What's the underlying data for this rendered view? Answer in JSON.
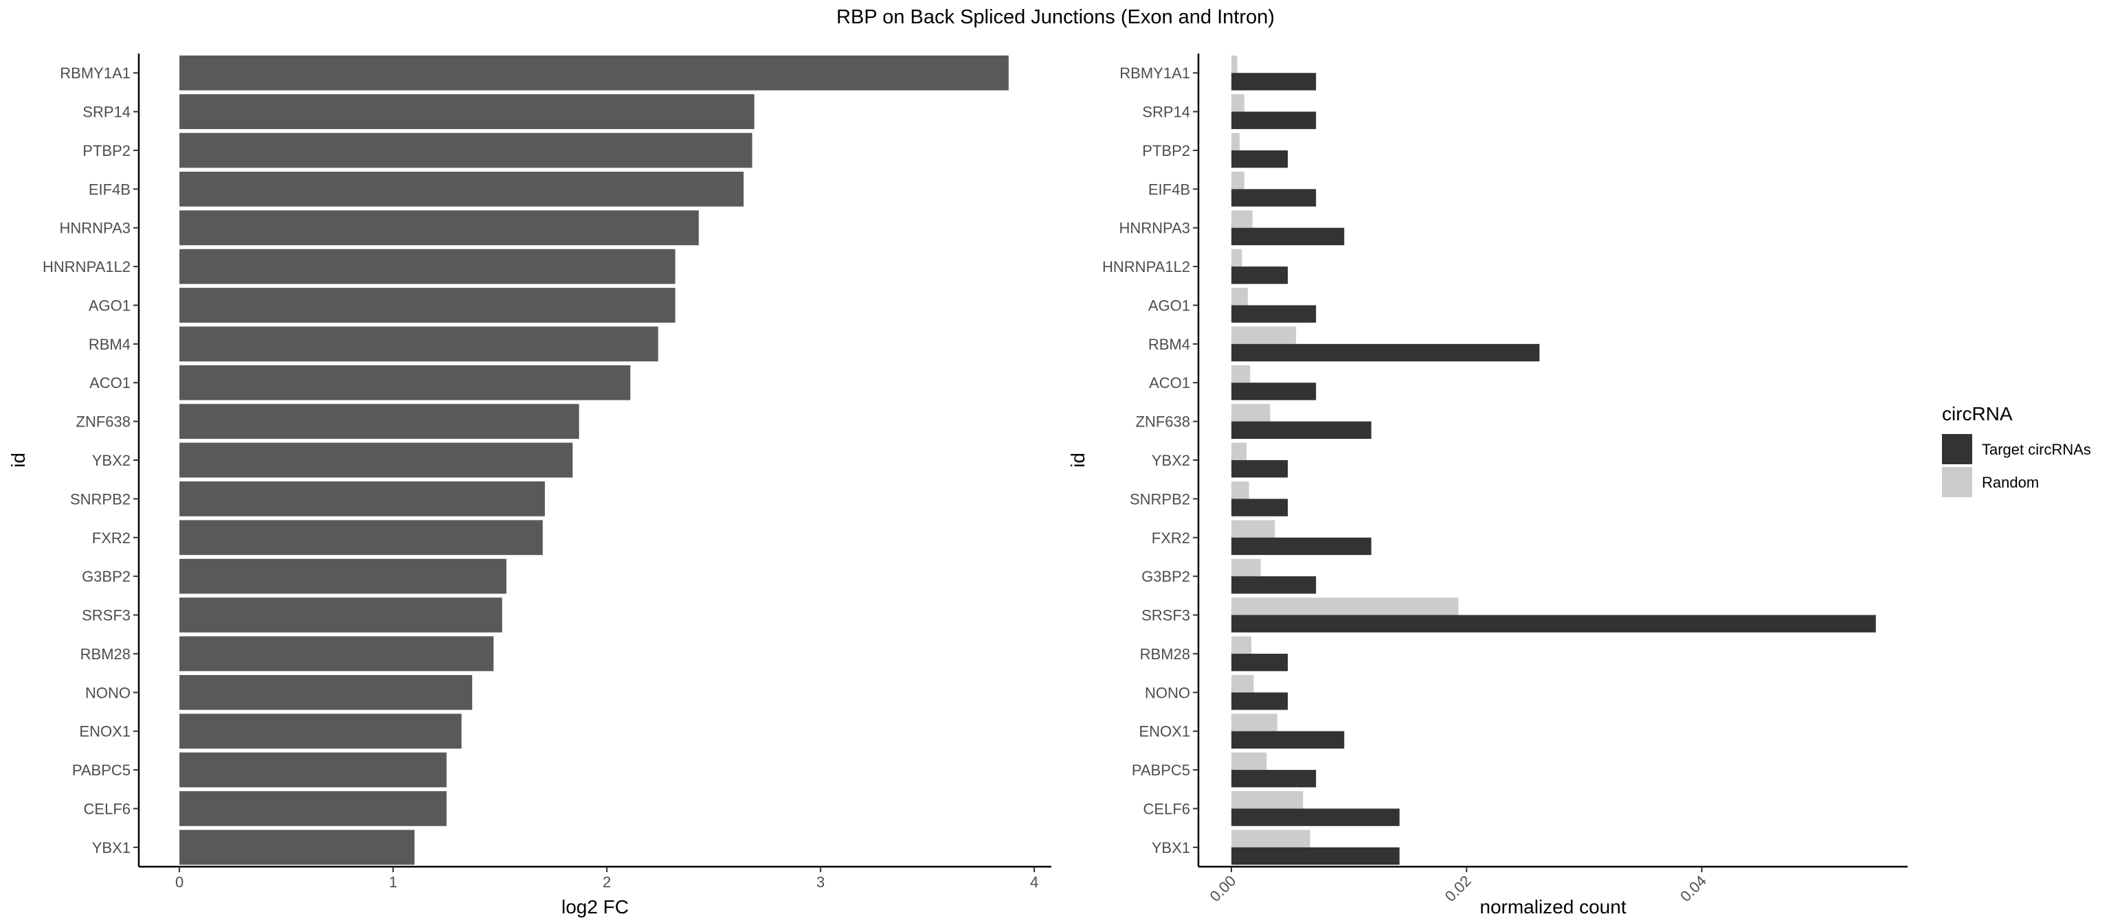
{
  "title": "RBP on Back Spliced Junctions (Exon and Intron)",
  "chart_data": [
    {
      "type": "bar",
      "orientation": "horizontal",
      "categories": [
        "RBMY1A1",
        "SRP14",
        "PTBP2",
        "EIF4B",
        "HNRNPA3",
        "HNRNPA1L2",
        "AGO1",
        "RBM4",
        "ACO1",
        "ZNF638",
        "YBX2",
        "SNRPB2",
        "FXR2",
        "G3BP2",
        "SRSF3",
        "RBM28",
        "NONO",
        "ENOX1",
        "PABPC5",
        "CELF6",
        "YBX1"
      ],
      "values": [
        3.88,
        2.69,
        2.68,
        2.64,
        2.43,
        2.32,
        2.32,
        2.24,
        2.11,
        1.87,
        1.84,
        1.71,
        1.7,
        1.53,
        1.51,
        1.47,
        1.37,
        1.32,
        1.25,
        1.25,
        1.1
      ],
      "xlabel": "log2 FC",
      "ylabel": "id",
      "xlim": [
        -0.19,
        4.08
      ],
      "xticks": [
        0,
        1,
        2,
        3,
        4
      ],
      "tick_labels": [
        "0",
        "1",
        "2",
        "3",
        "4"
      ],
      "bar_color": "#595959",
      "grid": false
    },
    {
      "type": "bar",
      "orientation": "horizontal",
      "position": "dodge",
      "categories": [
        "RBMY1A1",
        "SRP14",
        "PTBP2",
        "EIF4B",
        "HNRNPA3",
        "HNRNPA1L2",
        "AGO1",
        "RBM4",
        "ACO1",
        "ZNF638",
        "YBX2",
        "SNRPB2",
        "FXR2",
        "G3BP2",
        "SRSF3",
        "RBM28",
        "NONO",
        "ENOX1",
        "PABPC5",
        "CELF6",
        "YBX1"
      ],
      "series": [
        {
          "name": "Target circRNAs",
          "color": "#333333",
          "values": [
            0.0072,
            0.0072,
            0.0048,
            0.0072,
            0.0096,
            0.0048,
            0.0072,
            0.0262,
            0.0072,
            0.0119,
            0.0048,
            0.0048,
            0.0119,
            0.0072,
            0.0548,
            0.0048,
            0.0048,
            0.0096,
            0.0072,
            0.0143,
            0.0143
          ]
        },
        {
          "name": "Random",
          "color": "#cccccc",
          "values": [
            0.0005,
            0.0011,
            0.0007,
            0.0011,
            0.0018,
            0.0009,
            0.0014,
            0.0055,
            0.0016,
            0.0033,
            0.0013,
            0.0015,
            0.0037,
            0.0025,
            0.0193,
            0.0017,
            0.0019,
            0.0039,
            0.003,
            0.0061,
            0.0067
          ]
        }
      ],
      "xlabel": "normalized count",
      "ylabel": "id",
      "xlim": [
        -0.0028,
        0.0575
      ],
      "xticks": [
        0.0,
        0.02,
        0.04
      ],
      "tick_labels": [
        "0.00",
        "0.02",
        "0.04"
      ],
      "tick_label_rotation": 45,
      "legend_title": "circRNA",
      "legend_position": "right",
      "grid": false
    }
  ]
}
